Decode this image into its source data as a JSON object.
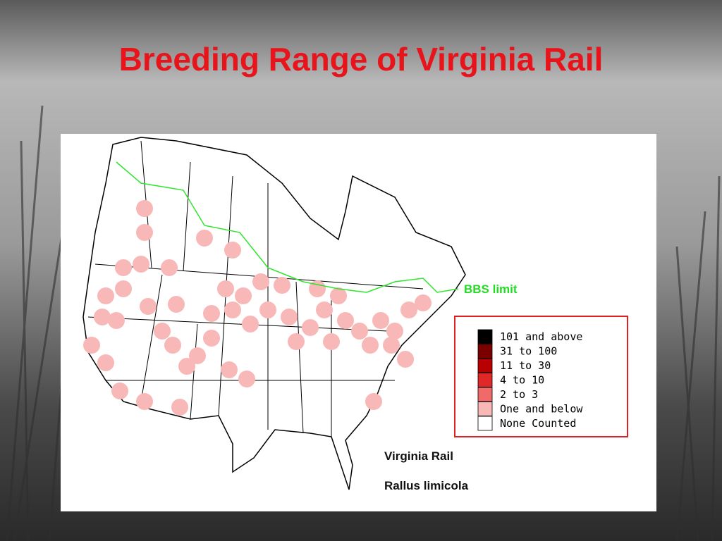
{
  "title": "Breeding Range of Virginia Rail",
  "map": {
    "boundary_label": "BBS limit",
    "legend": [
      {
        "label": "101 and above",
        "color": "#000000"
      },
      {
        "label": "31 to 100",
        "color": "#7a0000"
      },
      {
        "label": "11 to 30",
        "color": "#b80000"
      },
      {
        "label": "4 to 10",
        "color": "#e02828"
      },
      {
        "label": "2 to 3",
        "color": "#f06a6a"
      },
      {
        "label": "One and below",
        "color": "#f8b8b8"
      },
      {
        "label": "None Counted",
        "color": "#ffffff"
      }
    ],
    "species_common": "Virginia Rail",
    "species_scientific": "Rallus limicola"
  }
}
